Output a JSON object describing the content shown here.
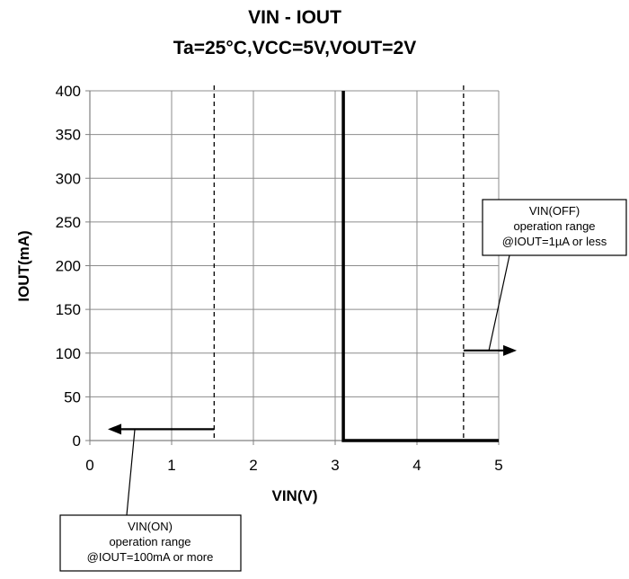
{
  "chart_data": {
    "type": "line",
    "title": "VIN - IOUT",
    "subtitle": "Ta=25°C,VCC=5V,VOUT=2V",
    "xlabel": "VIN(V)",
    "ylabel": "IOUT(mA)",
    "xlim": [
      0,
      5
    ],
    "ylim": [
      0,
      400
    ],
    "xticks": [
      "0",
      "1",
      "2",
      "3",
      "4",
      "5"
    ],
    "yticks": [
      "0",
      "50",
      "100",
      "150",
      "200",
      "250",
      "300",
      "350",
      "400"
    ],
    "grid": true,
    "series": [
      {
        "x": [
          3.1,
          3.1,
          5.0
        ],
        "y": [
          400,
          0,
          0
        ],
        "color": "#000000"
      }
    ],
    "markers": [
      {
        "x": 1.52,
        "style": "dashed"
      },
      {
        "x": 4.57,
        "style": "dashed"
      }
    ],
    "annotations": {
      "on": {
        "lines": [
          "VIN(ON)",
          "operation range",
          "@IOUT=100mA or more"
        ],
        "arrow_from": [
          1.52,
          13
        ],
        "arrow_to": [
          0.22,
          13
        ],
        "pointer_at": [
          0.55,
          13
        ]
      },
      "off": {
        "lines": [
          "VIN(OFF)",
          "operation range",
          "@IOUT=1µA or less"
        ],
        "arrow_from": [
          4.57,
          103
        ],
        "arrow_to": [
          5.22,
          103
        ],
        "pointer_at": [
          4.88,
          103
        ]
      }
    }
  }
}
